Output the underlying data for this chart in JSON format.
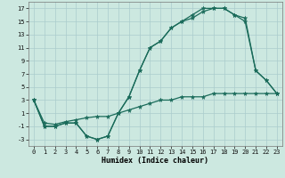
{
  "xlabel": "Humidex (Indice chaleur)",
  "background_color": "#cce8e0",
  "grid_color": "#aacccc",
  "line_color": "#1a6b5a",
  "xlim": [
    -0.5,
    23.5
  ],
  "ylim": [
    -4,
    18
  ],
  "xticks": [
    0,
    1,
    2,
    3,
    4,
    5,
    6,
    7,
    8,
    9,
    10,
    11,
    12,
    13,
    14,
    15,
    16,
    17,
    18,
    19,
    20,
    21,
    22,
    23
  ],
  "yticks": [
    -3,
    -1,
    1,
    3,
    5,
    7,
    9,
    11,
    13,
    15,
    17
  ],
  "line1_y": [
    3,
    -1,
    -1,
    -0.5,
    -0.5,
    -2.5,
    -3,
    -2.5,
    1.0,
    3.5,
    7.5,
    11,
    12,
    14,
    15,
    16,
    17,
    17,
    17,
    16,
    15.5,
    7.5,
    6,
    4
  ],
  "line2_y": [
    3,
    -1,
    -1,
    -0.5,
    -0.5,
    -2.5,
    -3,
    -2.5,
    1.0,
    3.5,
    7.5,
    11,
    12,
    14,
    15,
    15.5,
    16.5,
    17,
    17,
    16,
    15,
    7.5,
    6,
    4
  ],
  "line3_y": [
    3,
    -0.5,
    -0.7,
    -0.3,
    0.0,
    0.3,
    0.5,
    0.5,
    1.0,
    1.5,
    2.0,
    2.5,
    3.0,
    3.0,
    3.5,
    3.5,
    3.5,
    4.0,
    4.0,
    4.0,
    4.0,
    4.0,
    4.0,
    4.0
  ]
}
